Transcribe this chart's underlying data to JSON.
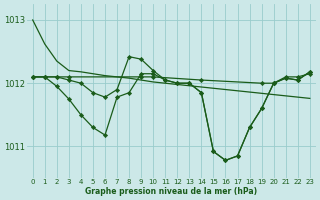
{
  "title": "Graphe pression niveau de la mer (hPa)",
  "background_color": "#cce8e8",
  "plot_bg_color": "#cce8e8",
  "grid_color": "#99cccc",
  "line_color": "#1a5c1a",
  "xlim": [
    -0.5,
    23.5
  ],
  "ylim": [
    1010.5,
    1013.25
  ],
  "yticks": [
    1011,
    1012,
    1013
  ],
  "xticks": [
    0,
    1,
    2,
    3,
    4,
    5,
    6,
    7,
    8,
    9,
    10,
    11,
    12,
    13,
    14,
    15,
    16,
    17,
    18,
    19,
    20,
    21,
    22,
    23
  ],
  "series": [
    {
      "x": [
        0,
        1,
        2,
        3,
        4,
        5,
        6,
        7,
        8,
        9,
        10,
        11,
        12,
        13,
        14,
        15,
        16,
        17,
        18,
        19,
        20,
        21,
        22,
        23
      ],
      "y": [
        1013.0,
        1012.62,
        1012.35,
        1012.2,
        1012.18,
        1012.15,
        1012.12,
        1012.1,
        1012.08,
        1012.05,
        1012.02,
        1012.0,
        1011.98,
        1011.96,
        1011.94,
        1011.92,
        1011.9,
        1011.88,
        1011.86,
        1011.84,
        1011.82,
        1011.8,
        1011.78,
        1011.76
      ],
      "has_markers": false
    },
    {
      "x": [
        0,
        1,
        2,
        3,
        9,
        10,
        14,
        19,
        20,
        21,
        22,
        23
      ],
      "y": [
        1012.1,
        1012.1,
        1012.1,
        1012.1,
        1012.1,
        1012.1,
        1012.05,
        1012.0,
        1012.0,
        1012.1,
        1012.1,
        1012.15
      ],
      "has_markers": true
    },
    {
      "x": [
        0,
        1,
        2,
        3,
        4,
        5,
        6,
        7,
        8,
        9,
        10,
        11,
        12,
        13,
        14,
        15,
        16,
        17,
        18,
        19,
        20,
        21,
        22,
        23
      ],
      "y": [
        1012.1,
        1012.1,
        1011.95,
        1011.75,
        1011.5,
        1011.3,
        1011.18,
        1011.78,
        1011.85,
        1012.15,
        1012.15,
        1012.05,
        1012.0,
        1012.0,
        1011.85,
        1010.92,
        1010.78,
        1010.85,
        1011.3,
        1011.6,
        1012.0,
        1012.08,
        1012.05,
        1012.18
      ],
      "has_markers": true
    },
    {
      "x": [
        0,
        1,
        2,
        3,
        4,
        5,
        6,
        7,
        8,
        9,
        10,
        11,
        12,
        13,
        14,
        15,
        16,
        17,
        18,
        19,
        20,
        21,
        22,
        23
      ],
      "y": [
        1012.1,
        1012.1,
        1012.1,
        1012.05,
        1012.0,
        1011.85,
        1011.78,
        1011.9,
        1012.42,
        1012.38,
        1012.2,
        1012.05,
        1012.0,
        1012.0,
        1011.85,
        1010.92,
        1010.78,
        1010.85,
        1011.3,
        1011.6,
        1012.0,
        1012.08,
        1012.05,
        1012.18
      ],
      "has_markers": true
    }
  ]
}
